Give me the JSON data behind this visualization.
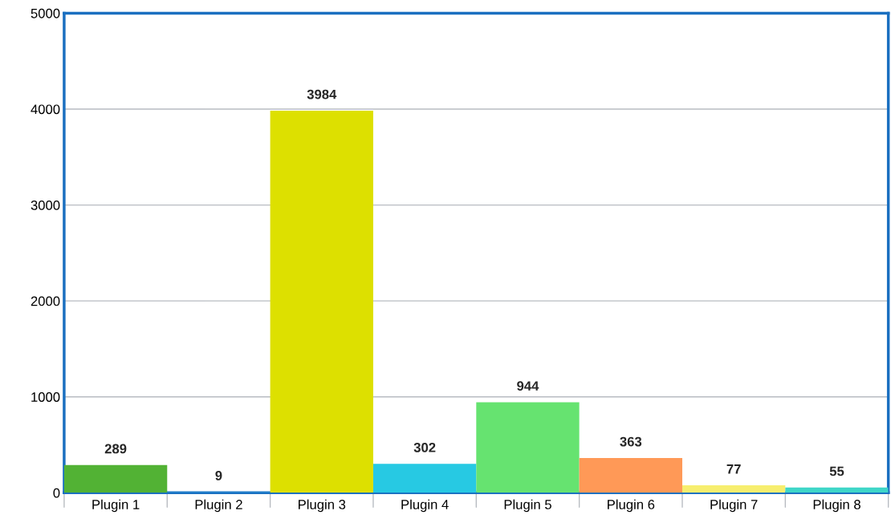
{
  "chart_data": {
    "type": "bar",
    "categories": [
      "Plugin 1",
      "Plugin 2",
      "Plugin 3",
      "Plugin 4",
      "Plugin 5",
      "Plugin 6",
      "Plugin 7",
      "Plugin 8"
    ],
    "values": [
      289,
      9,
      3984,
      302,
      944,
      363,
      77,
      55
    ],
    "colors": [
      "#52b234",
      "#2a8fd4",
      "#dde000",
      "#27c9e3",
      "#66e370",
      "#ff9957",
      "#f7ee6e",
      "#3fd6c8"
    ],
    "ylim": [
      0,
      5000
    ],
    "yticks": [
      0,
      1000,
      2000,
      3000,
      4000,
      5000
    ],
    "grid": "y",
    "data_labels": true,
    "legend": false
  }
}
